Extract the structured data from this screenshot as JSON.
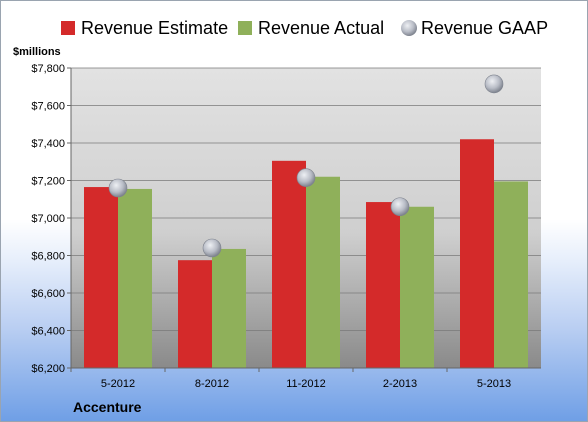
{
  "chart_data": {
    "type": "bar",
    "categories": [
      "5-2012",
      "8-2012",
      "11-2012",
      "2-2013",
      "5-2013"
    ],
    "series": [
      {
        "name": "Revenue Estimate",
        "values": [
          7165,
          6775,
          7305,
          7085,
          7420
        ],
        "color": "#d42a2a",
        "kind": "bar"
      },
      {
        "name": "Revenue Actual",
        "values": [
          7155,
          6835,
          7220,
          7060,
          7195
        ],
        "color": "#8fb05a",
        "kind": "bar"
      },
      {
        "name": "Revenue GAAP",
        "values": [
          7160,
          6840,
          7215,
          7060,
          7715
        ],
        "color": "#b8bcc6",
        "kind": "scatter"
      }
    ],
    "ylabel": "$millions",
    "ylim": [
      6200,
      7800
    ],
    "yticks": [
      "$6,200",
      "$6,400",
      "$6,600",
      "$6,800",
      "$7,000",
      "$7,200",
      "$7,400",
      "$7,600",
      "$7,800"
    ],
    "yticks_values": [
      6200,
      6400,
      6600,
      6800,
      7000,
      7200,
      7400,
      7600,
      7800
    ],
    "grid": true,
    "legend": "top",
    "company": "Accenture"
  }
}
